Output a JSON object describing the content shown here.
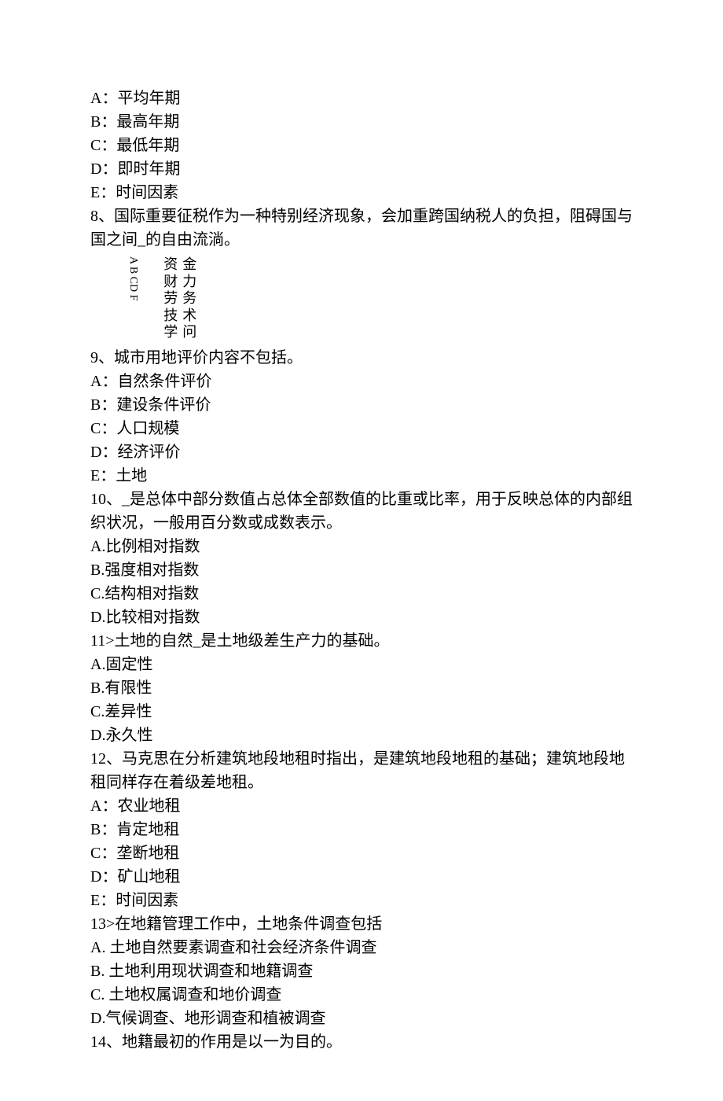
{
  "q7_options": {
    "A": "A：平均年期",
    "B": "B：最高年期",
    "C": "C：最低年期",
    "D": "D：即时年期",
    "E": "E：时间因素"
  },
  "q8": {
    "stem1": "8、国际重要征税作为一种特别经济现象，会加重跨国纳税人的负担，阻碍国与",
    "stem2": "国之间_的自由流淌。",
    "vertical_labels": "A B CD F",
    "options": {
      "A": [
        "资",
        "金"
      ],
      "B": [
        "财",
        "力"
      ],
      "C": [
        "劳",
        "务"
      ],
      "D": [
        "技",
        "术"
      ],
      "F": [
        "学",
        "问"
      ]
    }
  },
  "q9": {
    "stem": "9、城市用地评价内容不包括。",
    "A": "A：自然条件评价",
    "B": "B：建设条件评价",
    "C": "C：人口规模",
    "D": "D：经济评价",
    "E": "E：土地"
  },
  "q10": {
    "stem1": "10、_是总体中部分数值占总体全部数值的比重或比率，用于反映总体的内部组",
    "stem2": "织状况，一般用百分数或成数表示。",
    "A": "A.比例相对指数",
    "B": "B.强度相对指数",
    "C": "C.结构相对指数",
    "D": "D.比较相对指数"
  },
  "q11": {
    "stem": "11>土地的自然_是土地级差生产力的基础。",
    "A": "A.固定性",
    "B": "B.有限性",
    "C": "C.差异性",
    "D": "D.永久性"
  },
  "q12": {
    "stem1": "12、马克思在分析建筑地段地租时指出，是建筑地段地租的基础；建筑地段地",
    "stem2": "租同样存在着级差地租。",
    "A": "A：农业地租",
    "B": "B：肯定地租",
    "C": "C：垄断地租",
    "D": "D：矿山地租",
    "E": "E：时间因素"
  },
  "q13": {
    "stem": "13>在地籍管理工作中，土地条件调查包括",
    "A": "A.   土地自然要素调查和社会经济条件调查",
    "B": "B.   土地利用现状调查和地籍调查",
    "C": "C.   土地权属调查和地价调查",
    "D": "D.气候调查、地形调查和植被调查"
  },
  "q14": {
    "stem": "14、地籍最初的作用是以一为目的。"
  }
}
